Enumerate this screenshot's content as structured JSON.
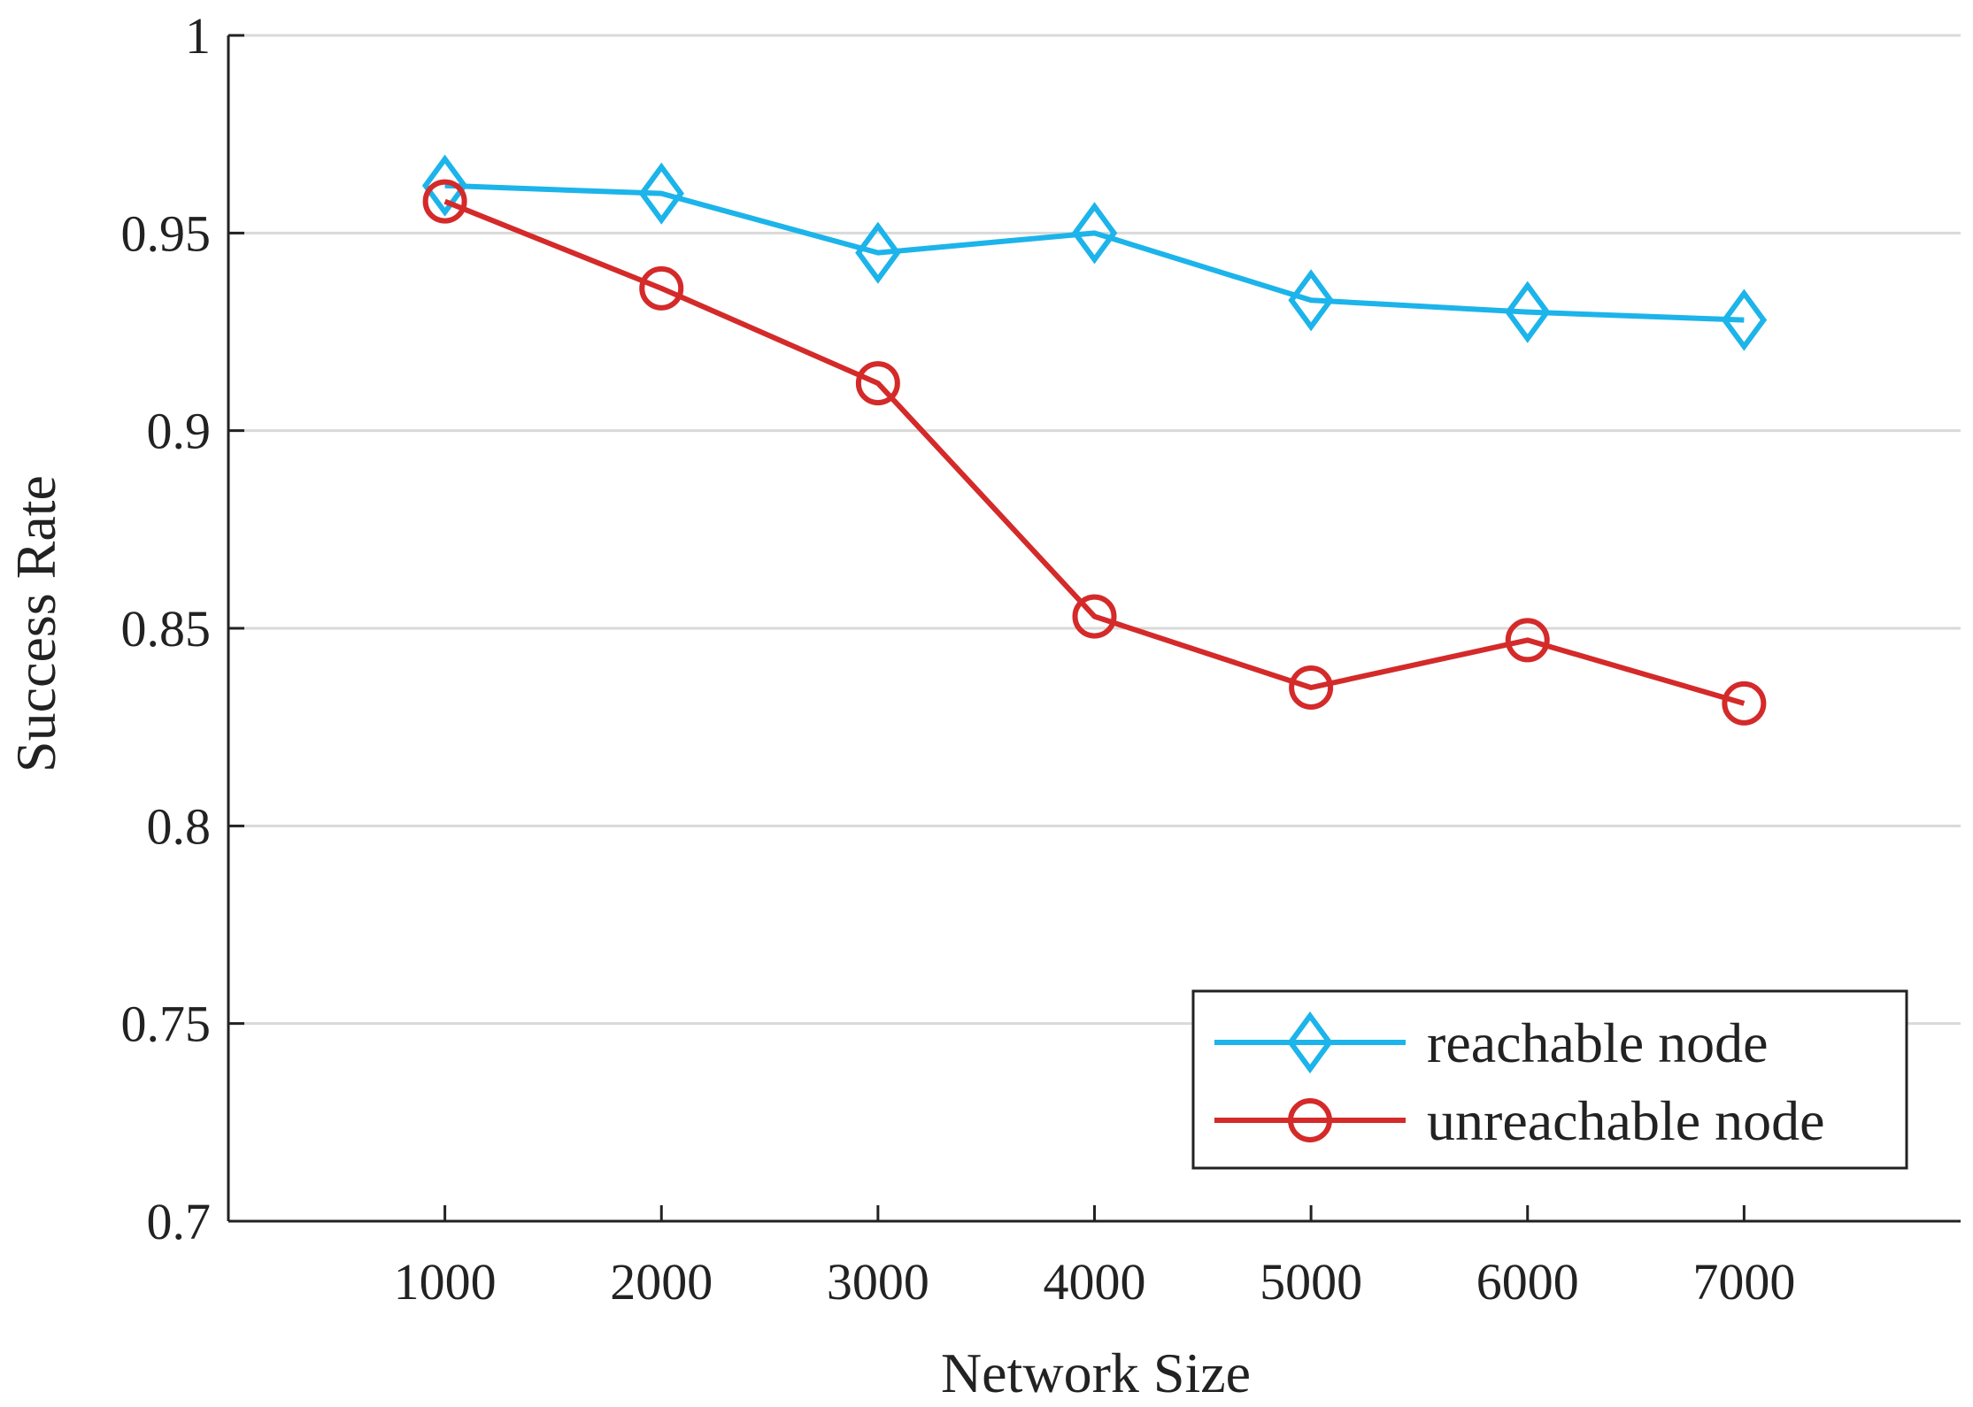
{
  "chart_data": {
    "type": "line",
    "title": "",
    "xlabel": "Network Size",
    "ylabel": "Success Rate",
    "x": [
      1000,
      2000,
      3000,
      4000,
      5000,
      6000,
      7000
    ],
    "xticks": [
      "1000",
      "2000",
      "3000",
      "4000",
      "5000",
      "6000",
      "7000"
    ],
    "xlim": [
      0,
      8000
    ],
    "ylim": [
      0.7,
      1.0
    ],
    "yticks": [
      0.7,
      0.75,
      0.8,
      0.85,
      0.9,
      0.95,
      1.0
    ],
    "ytick_labels": [
      "0.7",
      "0.75",
      "0.8",
      "0.85",
      "0.9",
      "0.95",
      "1"
    ],
    "grid": "horizontal",
    "legend_position": "bottom-right",
    "series": [
      {
        "name": "reachable node",
        "marker": "diamond",
        "color": "#1cb4ea",
        "values": [
          0.962,
          0.96,
          0.945,
          0.95,
          0.933,
          0.93,
          0.928
        ]
      },
      {
        "name": "unreachable node",
        "marker": "circle",
        "color": "#d42a2a",
        "values": [
          0.958,
          0.936,
          0.912,
          0.853,
          0.835,
          0.847,
          0.831
        ]
      }
    ]
  }
}
